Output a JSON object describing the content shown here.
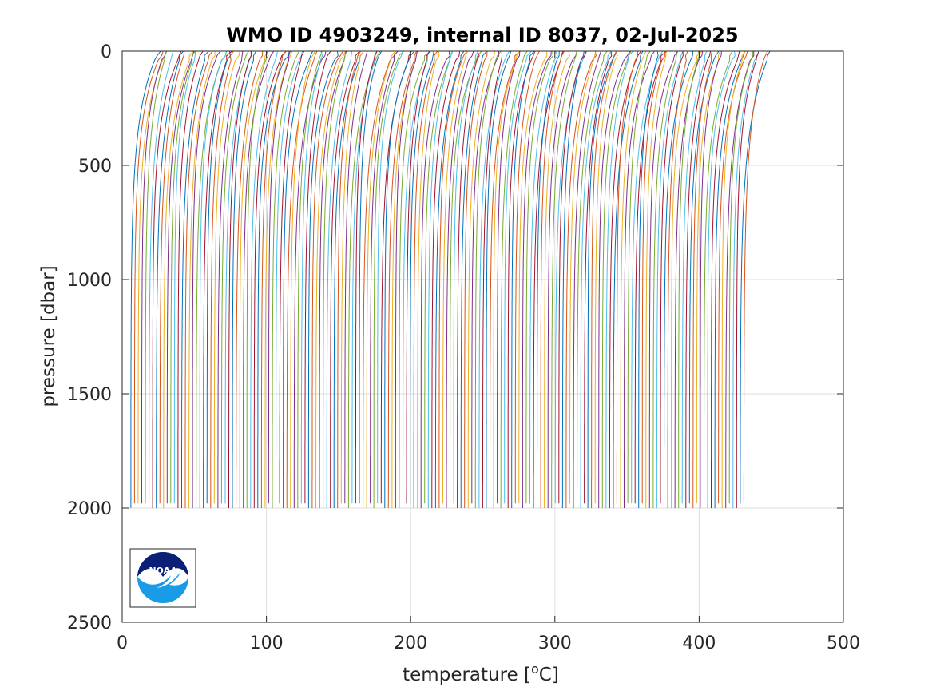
{
  "chart_data": {
    "type": "line",
    "title": "WMO ID 4903249, internal ID 8037, 02-Jul-2025",
    "xlabel": "temperature [",
    "xlabel_superscript": "o",
    "xlabel_suffix": "C]",
    "ylabel": "pressure [dbar]",
    "xlim": [
      0,
      500
    ],
    "ylim": [
      0,
      2500
    ],
    "y_reversed": true,
    "grid": true,
    "legend": "none",
    "xticks": [
      "0",
      "100",
      "200",
      "300",
      "400",
      "500"
    ],
    "yticks": [
      "0",
      "500",
      "1000",
      "1500",
      "2000",
      "2500"
    ],
    "xtick_values": [
      0,
      100,
      200,
      300,
      400,
      500
    ],
    "ytick_values": [
      0,
      500,
      1000,
      1500,
      2000,
      2500
    ],
    "series_colors": [
      "#0072bd",
      "#d95319",
      "#edb120",
      "#7e2f8e",
      "#77ac30",
      "#4dbeee",
      "#a2142f"
    ],
    "profile_count": 170,
    "profile_offset_start": 6.0,
    "profile_offset_end": 431.0,
    "max_pressure": 2010,
    "profile_shape": {
      "deep_temperature": 0,
      "surface_warming": 18,
      "decay_dbar": 280
    },
    "logo_text": "NOAA"
  }
}
